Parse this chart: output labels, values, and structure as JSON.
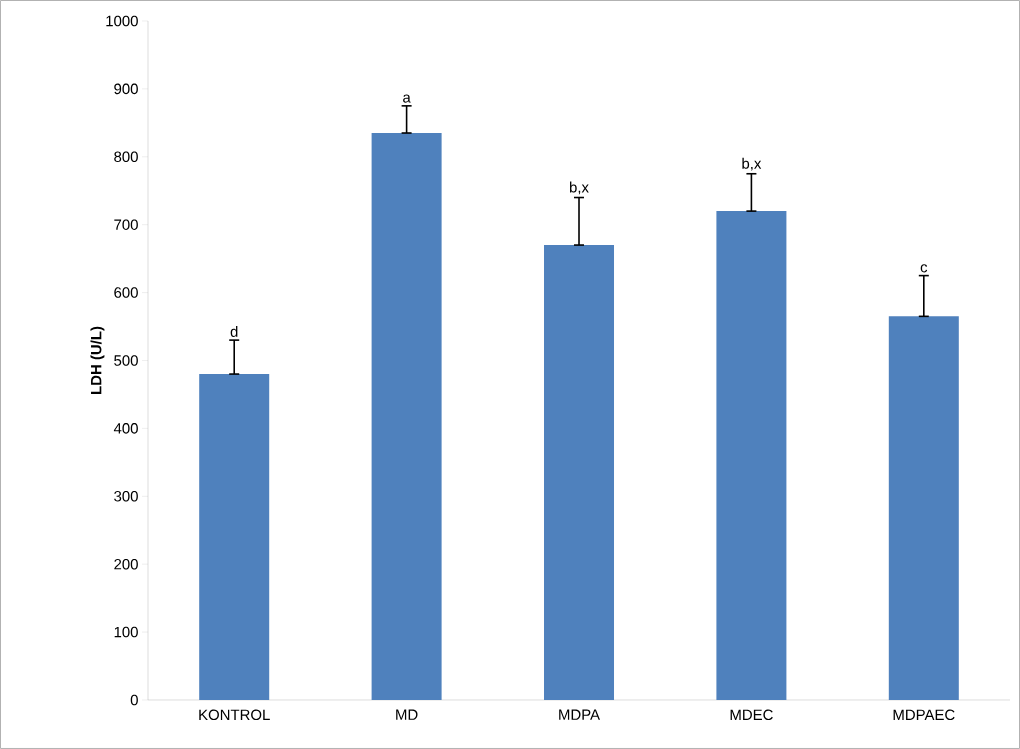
{
  "chart_data": {
    "type": "bar",
    "ylabel": "LDH (U/L)",
    "categories": [
      "KONTROL",
      "MD",
      "MDPA",
      "MDEC",
      "MDPAEC"
    ],
    "values": [
      480,
      835,
      670,
      720,
      565
    ],
    "errors": [
      [
        480,
        530
      ],
      [
        835,
        875
      ],
      [
        670,
        740
      ],
      [
        720,
        775
      ],
      [
        565,
        625
      ]
    ],
    "color": "#4f81bd",
    "ylim": [
      0,
      1000
    ],
    "yticks": [
      0,
      100,
      200,
      300,
      400,
      500,
      600,
      700,
      800,
      900,
      1000
    ],
    "annotations": [
      {
        "text": "d",
        "x": "KONTROL",
        "y": 530
      },
      {
        "text": "a",
        "x": "MD",
        "y": 875
      },
      {
        "text": "b,x",
        "x": "MDPA",
        "y": 740
      },
      {
        "text": "b,x",
        "x": "MDEC",
        "y": 775
      },
      {
        "text": "c",
        "x": "MDPAEC",
        "y": 625
      }
    ],
    "grid": false
  }
}
